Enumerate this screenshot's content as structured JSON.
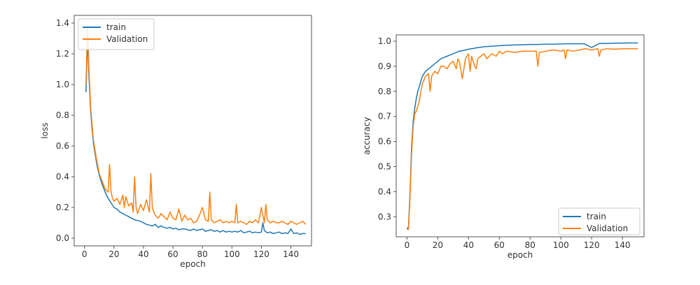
{
  "chart_data": [
    {
      "type": "line",
      "title": "",
      "xlabel": "epoch",
      "ylabel": "loss",
      "xlim": [
        -7,
        154
      ],
      "ylim": [
        -0.05,
        1.45
      ],
      "xticks": [
        0,
        20,
        40,
        60,
        80,
        100,
        120,
        140
      ],
      "yticks": [
        0.0,
        0.2,
        0.4,
        0.6,
        0.8,
        1.0,
        1.2,
        1.4
      ],
      "xtick_labels": [
        "0",
        "20",
        "40",
        "60",
        "80",
        "100",
        "120",
        "140"
      ],
      "ytick_labels": [
        "0.0",
        "0.2",
        "0.4",
        "0.6",
        "0.8",
        "1.0",
        "1.2",
        "1.4"
      ],
      "legend_position": "top-left",
      "grid": false,
      "series": [
        {
          "name": "train",
          "color": "#1f77b4",
          "x": [
            1,
            2,
            3,
            4,
            5,
            6,
            7,
            8,
            9,
            10,
            12,
            14,
            16,
            18,
            20,
            22,
            24,
            26,
            28,
            30,
            32,
            34,
            36,
            38,
            40,
            42,
            44,
            46,
            48,
            50,
            52,
            54,
            56,
            58,
            60,
            62,
            64,
            66,
            68,
            70,
            72,
            74,
            76,
            78,
            80,
            82,
            84,
            86,
            88,
            90,
            92,
            94,
            96,
            98,
            100,
            102,
            104,
            106,
            108,
            110,
            112,
            114,
            116,
            118,
            120,
            121,
            122,
            124,
            126,
            128,
            130,
            132,
            134,
            136,
            138,
            140,
            142,
            144,
            146,
            148,
            150
          ],
          "y": [
            0.95,
            1.3,
            1.05,
            0.85,
            0.72,
            0.62,
            0.56,
            0.5,
            0.45,
            0.41,
            0.35,
            0.3,
            0.26,
            0.23,
            0.2,
            0.19,
            0.17,
            0.16,
            0.15,
            0.14,
            0.13,
            0.12,
            0.115,
            0.11,
            0.1,
            0.09,
            0.085,
            0.08,
            0.09,
            0.07,
            0.08,
            0.07,
            0.065,
            0.07,
            0.06,
            0.065,
            0.055,
            0.06,
            0.06,
            0.055,
            0.05,
            0.06,
            0.05,
            0.055,
            0.06,
            0.045,
            0.05,
            0.055,
            0.045,
            0.05,
            0.04,
            0.05,
            0.04,
            0.045,
            0.04,
            0.045,
            0.04,
            0.05,
            0.035,
            0.04,
            0.045,
            0.035,
            0.04,
            0.035,
            0.04,
            0.1,
            0.05,
            0.035,
            0.04,
            0.03,
            0.035,
            0.04,
            0.03,
            0.035,
            0.03,
            0.06,
            0.03,
            0.035,
            0.025,
            0.03,
            0.03
          ]
        },
        {
          "name": "Validation",
          "color": "#ff7f0e",
          "x": [
            1,
            2,
            3,
            4,
            5,
            6,
            7,
            8,
            9,
            10,
            12,
            14,
            16,
            17,
            18,
            19,
            20,
            22,
            24,
            26,
            27,
            28,
            30,
            32,
            33,
            34,
            35,
            36,
            38,
            40,
            42,
            44,
            45,
            46,
            47,
            48,
            50,
            52,
            54,
            56,
            58,
            60,
            62,
            64,
            66,
            68,
            70,
            72,
            74,
            76,
            78,
            80,
            82,
            84,
            85,
            86,
            88,
            90,
            92,
            94,
            96,
            98,
            100,
            102,
            103,
            104,
            106,
            108,
            110,
            112,
            114,
            116,
            118,
            120,
            122,
            123,
            124,
            126,
            128,
            130,
            132,
            134,
            136,
            138,
            140,
            142,
            144,
            146,
            148,
            150
          ],
          "y": [
            1.0,
            1.38,
            1.1,
            0.88,
            0.75,
            0.64,
            0.58,
            0.52,
            0.47,
            0.42,
            0.37,
            0.32,
            0.3,
            0.48,
            0.3,
            0.26,
            0.24,
            0.26,
            0.22,
            0.28,
            0.2,
            0.27,
            0.21,
            0.23,
            0.17,
            0.4,
            0.2,
            0.16,
            0.22,
            0.18,
            0.25,
            0.17,
            0.42,
            0.2,
            0.17,
            0.15,
            0.13,
            0.16,
            0.14,
            0.12,
            0.17,
            0.13,
            0.12,
            0.19,
            0.11,
            0.15,
            0.12,
            0.13,
            0.1,
            0.11,
            0.15,
            0.2,
            0.12,
            0.11,
            0.3,
            0.12,
            0.1,
            0.11,
            0.12,
            0.1,
            0.11,
            0.1,
            0.11,
            0.1,
            0.22,
            0.1,
            0.11,
            0.1,
            0.09,
            0.11,
            0.1,
            0.12,
            0.1,
            0.2,
            0.1,
            0.22,
            0.12,
            0.1,
            0.11,
            0.1,
            0.1,
            0.11,
            0.1,
            0.09,
            0.11,
            0.1,
            0.09,
            0.1,
            0.11,
            0.09
          ]
        }
      ]
    },
    {
      "type": "line",
      "title": "",
      "xlabel": "epoch",
      "ylabel": "accuracy",
      "xlim": [
        -7,
        154
      ],
      "ylim": [
        0.22,
        1.025
      ],
      "xticks": [
        0,
        20,
        40,
        60,
        80,
        100,
        120,
        140
      ],
      "yticks": [
        0.3,
        0.4,
        0.5,
        0.6,
        0.7,
        0.8,
        0.9,
        1.0
      ],
      "xtick_labels": [
        "0",
        "20",
        "40",
        "60",
        "80",
        "100",
        "120",
        "140"
      ],
      "ytick_labels": [
        "0.3",
        "0.4",
        "0.5",
        "0.6",
        "0.7",
        "0.8",
        "0.9",
        "1.0"
      ],
      "legend_position": "lower-right",
      "grid": false,
      "series": [
        {
          "name": "train",
          "color": "#1f77b4",
          "x": [
            0,
            1,
            2,
            3,
            4,
            5,
            6,
            7,
            8,
            9,
            10,
            12,
            14,
            16,
            18,
            20,
            22,
            24,
            26,
            28,
            30,
            32,
            34,
            36,
            38,
            40,
            42,
            44,
            46,
            48,
            50,
            55,
            60,
            65,
            70,
            75,
            80,
            85,
            90,
            95,
            100,
            105,
            110,
            115,
            120,
            125,
            130,
            135,
            140,
            145,
            150
          ],
          "y": [
            0.25,
            0.26,
            0.4,
            0.58,
            0.68,
            0.73,
            0.77,
            0.8,
            0.82,
            0.84,
            0.86,
            0.88,
            0.89,
            0.9,
            0.91,
            0.92,
            0.93,
            0.935,
            0.94,
            0.945,
            0.95,
            0.955,
            0.96,
            0.962,
            0.965,
            0.968,
            0.97,
            0.972,
            0.975,
            0.976,
            0.978,
            0.98,
            0.982,
            0.984,
            0.985,
            0.986,
            0.987,
            0.987,
            0.988,
            0.988,
            0.989,
            0.99,
            0.99,
            0.99,
            0.975,
            0.991,
            0.991,
            0.992,
            0.992,
            0.993,
            0.993
          ]
        },
        {
          "name": "Validation",
          "color": "#ff7f0e",
          "x": [
            0,
            1,
            2,
            3,
            4,
            5,
            6,
            7,
            8,
            9,
            10,
            12,
            14,
            15,
            16,
            18,
            20,
            22,
            24,
            26,
            28,
            30,
            32,
            33,
            34,
            36,
            38,
            40,
            41,
            42,
            44,
            45,
            46,
            48,
            50,
            52,
            55,
            58,
            60,
            62,
            65,
            70,
            75,
            80,
            84,
            85,
            86,
            90,
            95,
            100,
            102,
            103,
            104,
            108,
            112,
            116,
            120,
            124,
            125,
            126,
            130,
            135,
            140,
            145,
            150
          ],
          "y": [
            0.25,
            0.25,
            0.38,
            0.55,
            0.66,
            0.71,
            0.72,
            0.74,
            0.76,
            0.8,
            0.83,
            0.86,
            0.87,
            0.8,
            0.86,
            0.88,
            0.87,
            0.9,
            0.9,
            0.89,
            0.91,
            0.92,
            0.89,
            0.93,
            0.92,
            0.85,
            0.93,
            0.95,
            0.88,
            0.94,
            0.9,
            0.89,
            0.93,
            0.94,
            0.95,
            0.93,
            0.95,
            0.94,
            0.96,
            0.95,
            0.96,
            0.955,
            0.96,
            0.96,
            0.96,
            0.9,
            0.955,
            0.96,
            0.965,
            0.96,
            0.965,
            0.93,
            0.965,
            0.96,
            0.965,
            0.97,
            0.965,
            0.97,
            0.94,
            0.965,
            0.97,
            0.968,
            0.97,
            0.97,
            0.97
          ]
        }
      ]
    }
  ]
}
